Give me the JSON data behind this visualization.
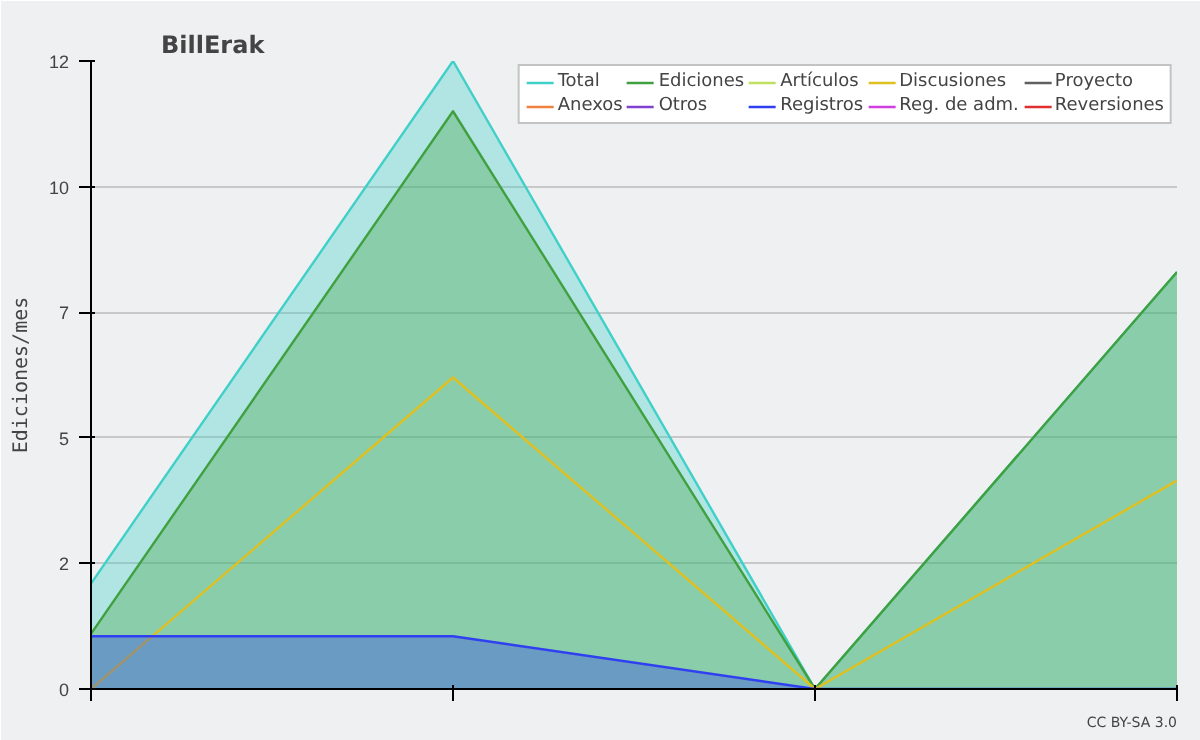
{
  "chart_data": {
    "type": "area",
    "title": "BillErak",
    "ylabel": "Ediciones/mes",
    "categories": [
      null,
      null,
      null,
      null
    ],
    "series": [
      {
        "name": "Total",
        "color": "#40d0c8",
        "values": [
          2.1,
          12.5,
          0,
          8.3
        ]
      },
      {
        "name": "Ediciones",
        "color": "#40a040",
        "values": [
          1.1,
          11.5,
          0,
          8.3
        ]
      },
      {
        "name": "Artículos",
        "type": "line",
        "color": "#c0e060",
        "values": [
          null,
          null,
          null,
          null
        ]
      },
      {
        "name": "Discusiones",
        "type": "line",
        "color": "#e0c020",
        "values": [
          0,
          6.2,
          0,
          4.15
        ]
      },
      {
        "name": "Proyecto",
        "type": "line",
        "color": "#606060",
        "values": [
          null,
          null,
          null,
          null
        ]
      },
      {
        "name": "Anexos",
        "type": "line",
        "color": "#f08040",
        "values": [
          null,
          null,
          null,
          null
        ]
      },
      {
        "name": "Otros",
        "type": "line",
        "color": "#8040d0",
        "values": [
          null,
          null,
          null,
          null
        ]
      },
      {
        "name": "Registros",
        "color": "#3040f0",
        "values": [
          1.05,
          1.05,
          0,
          0
        ]
      },
      {
        "name": "Reg. de adm.",
        "type": "line",
        "color": "#d040e0",
        "values": [
          null,
          null,
          null,
          null
        ]
      },
      {
        "name": "Reversiones",
        "type": "line",
        "color": "#e03030",
        "values": [
          null,
          null,
          null,
          null
        ]
      }
    ],
    "ylim": [
      0,
      12.5
    ],
    "yticks": [
      0,
      {
        "value": 2.5,
        "label": "2"
      },
      5,
      {
        "value": 7.5,
        "label": "7"
      },
      10,
      {
        "value": 12.5,
        "label": "12"
      }
    ],
    "grid": "y",
    "legend": "top right",
    "annotations": [
      "CC BY-SA 3.0"
    ]
  }
}
